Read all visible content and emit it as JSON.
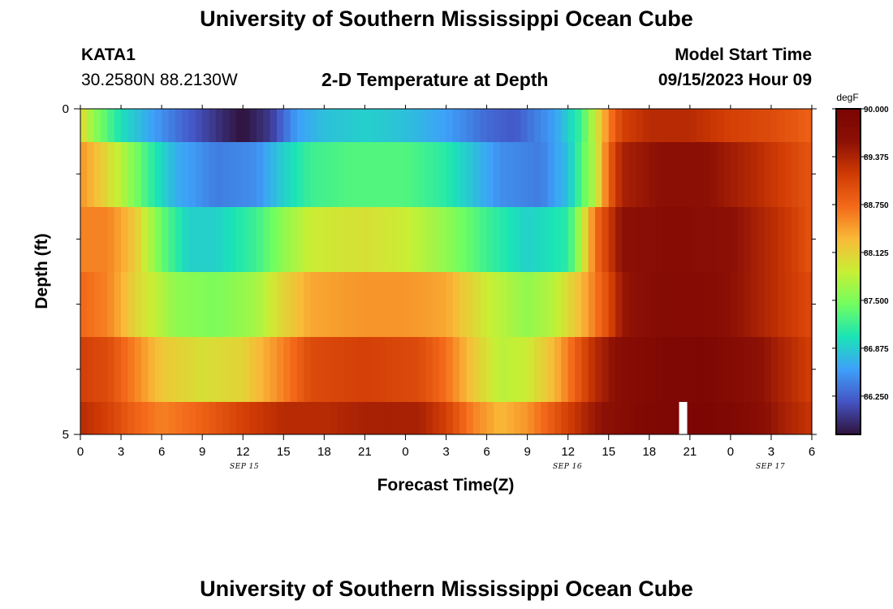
{
  "header": {
    "title": "University of Southern Mississippi Ocean Cube",
    "station_id": "KATA1",
    "station_coords": "30.2580N  88.2130W",
    "plot_title": "2-D Temperature at Depth",
    "model_start_label": "Model Start Time",
    "model_start_value": "09/15/2023 Hour 09"
  },
  "footer": {
    "title": "University of Southern Mississippi Ocean Cube"
  },
  "colors": {
    "background": "#ffffff",
    "gap_bar": "#ffffff",
    "palette": [
      "#30123b",
      "#4454c4",
      "#3ea0fa",
      "#1ae4b6",
      "#71fe5f",
      "#c8ef34",
      "#f9ba38",
      "#f46a1a",
      "#cf3a04",
      "#8c1005",
      "#7a0403"
    ]
  },
  "chart_data": {
    "type": "heatmap",
    "title": "2-D Temperature at Depth",
    "xlabel": "Forecast Time(Z)",
    "ylabel": "Depth (ft)",
    "x_hours_from_start": [
      0,
      36
    ],
    "x_tick_labels": [
      "0",
      "3",
      "6",
      "9",
      "12",
      "15",
      "18",
      "21",
      "0",
      "3",
      "6",
      "9",
      "12",
      "15",
      "18",
      "21",
      "0",
      "3",
      "6"
    ],
    "date_labels": [
      {
        "label": "SEP 15",
        "at_hour": 12
      },
      {
        "label": "SEP 16",
        "at_hour": 36
      },
      {
        "label": "SEP 17",
        "at_hour": 51
      }
    ],
    "ylim": [
      0,
      5
    ],
    "y_tick_labels": [
      "0",
      "5"
    ],
    "y_minor_ticks": [
      1,
      2,
      3,
      4
    ],
    "depth_rows": [
      0,
      1,
      2,
      3,
      4,
      5
    ],
    "colorbar": {
      "unit": "degF",
      "min": 85.75,
      "max": 90.0,
      "tick_labels": [
        "90.000",
        "89.375",
        "88.750",
        "88.125",
        "87.500",
        "86.875",
        "86.250"
      ]
    },
    "row_profiles": [
      [
        [
          0,
          88.1
        ],
        [
          1,
          87.6
        ],
        [
          3,
          87.0
        ],
        [
          6,
          86.5
        ],
        [
          9,
          86.1
        ],
        [
          11,
          85.85
        ],
        [
          12,
          85.75
        ],
        [
          14,
          86.0
        ],
        [
          16,
          86.6
        ],
        [
          18,
          86.8
        ],
        [
          21,
          86.9
        ],
        [
          24,
          86.8
        ],
        [
          27,
          86.6
        ],
        [
          30,
          86.3
        ],
        [
          32,
          86.2
        ],
        [
          35,
          86.6
        ],
        [
          37,
          87.2
        ],
        [
          38,
          87.9
        ],
        [
          39,
          88.6
        ],
        [
          40,
          89.1
        ],
        [
          42,
          89.3
        ],
        [
          45,
          89.3
        ],
        [
          48,
          89.1
        ],
        [
          51,
          89.0
        ],
        [
          54,
          88.8
        ]
      ],
      [
        [
          0,
          88.5
        ],
        [
          1,
          88.3
        ],
        [
          3,
          87.8
        ],
        [
          5,
          87.2
        ],
        [
          7,
          86.7
        ],
        [
          10,
          86.4
        ],
        [
          13,
          86.5
        ],
        [
          15,
          86.9
        ],
        [
          17,
          87.2
        ],
        [
          20,
          87.3
        ],
        [
          24,
          87.3
        ],
        [
          27,
          87.1
        ],
        [
          29,
          86.8
        ],
        [
          31,
          86.5
        ],
        [
          34,
          86.4
        ],
        [
          36,
          86.8
        ],
        [
          38,
          87.8
        ],
        [
          39,
          88.8
        ],
        [
          40,
          89.4
        ],
        [
          43,
          89.6
        ],
        [
          46,
          89.6
        ],
        [
          50,
          89.3
        ],
        [
          54,
          88.9
        ]
      ],
      [
        [
          0,
          88.6
        ],
        [
          2,
          88.6
        ],
        [
          4,
          88.2
        ],
        [
          6,
          87.4
        ],
        [
          8,
          86.9
        ],
        [
          10,
          86.9
        ],
        [
          13,
          87.2
        ],
        [
          15,
          87.6
        ],
        [
          17,
          87.9
        ],
        [
          21,
          88.0
        ],
        [
          24,
          87.9
        ],
        [
          27,
          87.6
        ],
        [
          30,
          87.2
        ],
        [
          33,
          86.9
        ],
        [
          36,
          87.1
        ],
        [
          37,
          87.8
        ],
        [
          38,
          88.7
        ],
        [
          40,
          89.6
        ],
        [
          44,
          89.7
        ],
        [
          48,
          89.6
        ],
        [
          52,
          89.2
        ],
        [
          54,
          88.9
        ]
      ],
      [
        [
          0,
          88.75
        ],
        [
          2,
          88.6
        ],
        [
          4,
          88.1
        ],
        [
          7,
          87.6
        ],
        [
          10,
          87.5
        ],
        [
          13,
          87.7
        ],
        [
          15,
          88.1
        ],
        [
          17,
          88.4
        ],
        [
          21,
          88.5
        ],
        [
          24,
          88.5
        ],
        [
          27,
          88.4
        ],
        [
          30,
          87.9
        ],
        [
          33,
          87.6
        ],
        [
          35,
          87.8
        ],
        [
          37,
          88.3
        ],
        [
          39,
          89.0
        ],
        [
          40,
          89.5
        ],
        [
          43,
          89.75
        ],
        [
          46,
          89.75
        ],
        [
          50,
          89.4
        ],
        [
          54,
          89.0
        ]
      ],
      [
        [
          0,
          89.1
        ],
        [
          2,
          89.0
        ],
        [
          4,
          88.6
        ],
        [
          6,
          88.2
        ],
        [
          9,
          88.0
        ],
        [
          12,
          88.1
        ],
        [
          15,
          88.6
        ],
        [
          17,
          89.0
        ],
        [
          21,
          89.1
        ],
        [
          25,
          89.0
        ],
        [
          27,
          88.7
        ],
        [
          29,
          88.2
        ],
        [
          31,
          87.8
        ],
        [
          33,
          87.9
        ],
        [
          35,
          88.3
        ],
        [
          38,
          89.3
        ],
        [
          40,
          89.7
        ],
        [
          43,
          89.85
        ],
        [
          46,
          89.9
        ],
        [
          50,
          89.6
        ],
        [
          54,
          89.1
        ]
      ],
      [
        [
          0,
          89.3
        ],
        [
          2,
          89.1
        ],
        [
          4,
          88.8
        ],
        [
          6,
          88.6
        ],
        [
          9,
          88.8
        ],
        [
          12,
          89.1
        ],
        [
          15,
          89.3
        ],
        [
          18,
          89.3
        ],
        [
          21,
          89.4
        ],
        [
          25,
          89.4
        ],
        [
          27,
          89.1
        ],
        [
          29,
          88.6
        ],
        [
          31,
          88.3
        ],
        [
          33,
          88.5
        ],
        [
          36,
          89.1
        ],
        [
          38,
          89.5
        ],
        [
          41,
          89.8
        ],
        [
          44,
          89.9
        ],
        [
          46,
          89.95
        ],
        [
          49,
          89.8
        ],
        [
          52,
          89.4
        ],
        [
          54,
          89.2
        ]
      ]
    ],
    "missing_data": {
      "row": 5,
      "at_hour": 44.5
    }
  }
}
